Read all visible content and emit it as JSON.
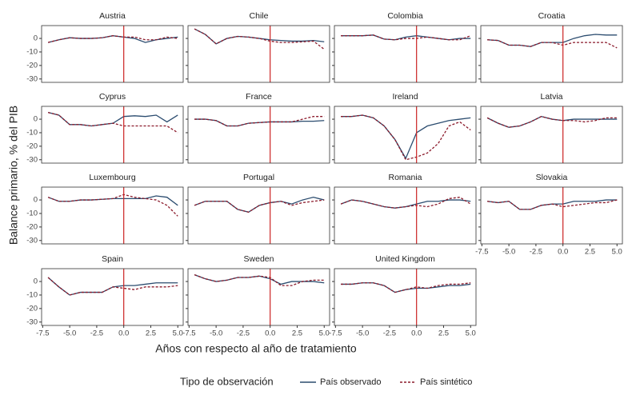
{
  "ylabel": "Balance primario, % del PIB",
  "xlabel": "Años con respecto al año de tratamiento",
  "xlim": [
    -7.6,
    5.5
  ],
  "xticks": [
    -7.5,
    {
      "value": -5,
      "label": "-5.0"
    },
    -2.5,
    {
      "value": 0,
      "label": "0.0"
    },
    2.5,
    {
      "value": 5,
      "label": "5.0"
    }
  ],
  "ylim": [
    -32.5,
    9.5
  ],
  "yticks": [
    0,
    -10,
    -20,
    -30
  ],
  "treatment_x": 0,
  "treatment_color": "#cc2222",
  "x": [
    -7,
    -6,
    -5,
    -4,
    -3,
    -2,
    -1,
    0,
    1,
    2,
    3,
    4,
    5
  ],
  "legend": {
    "title": "Tipo de observación",
    "entries": [
      {
        "name": "País observado",
        "color": "#2b4c6f",
        "dash": false
      },
      {
        "name": "País sintético",
        "color": "#8b1a2b",
        "dash": true
      }
    ]
  },
  "chart_data": [
    {
      "type": "line",
      "title": "Austria",
      "series": [
        {
          "values": [
            -3,
            -1,
            0.5,
            0,
            0,
            0.5,
            2,
            1,
            0,
            -3,
            -1,
            0,
            1
          ]
        },
        {
          "values": [
            -3,
            -1,
            0.5,
            0,
            0,
            0.5,
            2,
            1,
            1,
            -1,
            -1,
            1,
            0
          ]
        }
      ]
    },
    {
      "type": "line",
      "title": "Chile",
      "series": [
        {
          "values": [
            7,
            3,
            -4,
            0,
            1.5,
            1,
            0,
            -1,
            -1.5,
            -2,
            -2,
            -1.5,
            -2.5
          ]
        },
        {
          "values": [
            7,
            3,
            -4,
            0,
            1.5,
            1,
            0,
            -2,
            -3,
            -3,
            -2.5,
            -2,
            -8
          ]
        }
      ]
    },
    {
      "type": "line",
      "title": "Colombia",
      "series": [
        {
          "values": [
            2,
            2,
            2,
            2.5,
            -0.5,
            -1,
            1,
            2,
            1,
            0,
            -1,
            0,
            0
          ]
        },
        {
          "values": [
            2,
            2,
            2,
            2.5,
            -0.5,
            -1,
            0,
            0,
            1,
            0,
            -1,
            -1,
            2
          ]
        }
      ]
    },
    {
      "type": "line",
      "title": "Croatia",
      "series": [
        {
          "values": [
            -1,
            -1.5,
            -5,
            -5,
            -6,
            -3,
            -3,
            -3,
            0,
            2,
            3,
            2.5,
            2.5
          ]
        },
        {
          "values": [
            -1,
            -1.5,
            -5,
            -5,
            -6,
            -3,
            -3,
            -5,
            -3,
            -3,
            -3,
            -3,
            -7
          ]
        }
      ]
    },
    {
      "type": "line",
      "title": "Cyprus",
      "series": [
        {
          "values": [
            5,
            3,
            -4,
            -4,
            -5,
            -4,
            -3,
            2,
            2.5,
            2,
            3,
            -2,
            3
          ]
        },
        {
          "values": [
            5,
            3,
            -4,
            -4,
            -5,
            -4,
            -3,
            -5,
            -5,
            -5,
            -5,
            -5,
            -10
          ]
        }
      ]
    },
    {
      "type": "line",
      "title": "France",
      "series": [
        {
          "values": [
            0,
            0,
            -1,
            -5,
            -5,
            -3,
            -2.5,
            -2,
            -2,
            -2,
            -1.5,
            -1.5,
            -1
          ]
        },
        {
          "values": [
            0,
            0,
            -1,
            -5,
            -5,
            -3,
            -2.5,
            -2,
            -2,
            -2,
            0,
            2,
            2
          ]
        }
      ]
    },
    {
      "type": "line",
      "title": "Ireland",
      "series": [
        {
          "values": [
            2,
            2,
            3,
            1,
            -5,
            -15,
            -29,
            -10,
            -5,
            -3,
            -1,
            0,
            1
          ]
        },
        {
          "values": [
            2,
            2,
            3,
            1,
            -5,
            -15,
            -30,
            -28,
            -25,
            -18,
            -5,
            -2,
            -8
          ]
        }
      ]
    },
    {
      "type": "line",
      "title": "Latvia",
      "series": [
        {
          "values": [
            1,
            -3,
            -6,
            -5,
            -2,
            2,
            0,
            -1,
            0,
            0,
            0,
            0,
            0
          ]
        },
        {
          "values": [
            1,
            -3,
            -6,
            -5,
            -2,
            2,
            0,
            -1,
            -1,
            -2,
            -1,
            1,
            1
          ]
        }
      ]
    },
    {
      "type": "line",
      "title": "Luxembourg",
      "series": [
        {
          "values": [
            2,
            -1,
            -1,
            0,
            0,
            0.5,
            1,
            1,
            1,
            1,
            3,
            2,
            -4
          ]
        },
        {
          "values": [
            2,
            -1,
            -1,
            0,
            0,
            0.5,
            1,
            4,
            2,
            1,
            0,
            -4,
            -12
          ]
        }
      ]
    },
    {
      "type": "line",
      "title": "Portugal",
      "series": [
        {
          "values": [
            -4,
            -1,
            -1,
            -1,
            -7,
            -9,
            -4,
            -2,
            -1,
            -3,
            0,
            2,
            0
          ]
        },
        {
          "values": [
            -4,
            -1,
            -1,
            -1,
            -7,
            -9,
            -4,
            -2,
            -1,
            -4,
            -2,
            -1,
            0
          ]
        }
      ]
    },
    {
      "type": "line",
      "title": "Romania",
      "series": [
        {
          "values": [
            -3,
            0,
            -1,
            -3,
            -5,
            -6,
            -5,
            -3,
            -1,
            -1,
            0,
            0,
            -1
          ]
        },
        {
          "values": [
            -3,
            0,
            -1,
            -3,
            -5,
            -6,
            -5,
            -4,
            -5,
            -3,
            1,
            2,
            -3
          ]
        }
      ]
    },
    {
      "type": "line",
      "title": "Slovakia",
      "series": [
        {
          "values": [
            -1,
            -2,
            -1,
            -7,
            -7,
            -4,
            -3,
            -3,
            -1,
            -1,
            -1,
            0,
            0
          ]
        },
        {
          "values": [
            -1,
            -2,
            -1,
            -7,
            -7,
            -4,
            -3,
            -5,
            -4,
            -3,
            -2,
            -2,
            0
          ]
        }
      ]
    },
    {
      "type": "line",
      "title": "Spain",
      "series": [
        {
          "values": [
            3,
            -4,
            -10,
            -8,
            -8,
            -8,
            -4,
            -3,
            -3,
            -2,
            -1,
            -1,
            -1
          ]
        },
        {
          "values": [
            3,
            -4,
            -10,
            -8,
            -8,
            -8,
            -4,
            -5,
            -6,
            -4,
            -4,
            -4,
            -3
          ]
        }
      ]
    },
    {
      "type": "line",
      "title": "Sweden",
      "series": [
        {
          "values": [
            5,
            2,
            0,
            1,
            3,
            3,
            4,
            2,
            -2,
            0,
            0,
            0,
            -1
          ]
        },
        {
          "values": [
            5,
            2,
            0,
            1,
            3,
            3,
            4,
            3,
            -3,
            -3,
            0,
            1,
            1
          ]
        }
      ]
    },
    {
      "type": "line",
      "title": "United Kingdom",
      "series": [
        {
          "values": [
            -2,
            -2,
            -1,
            -1,
            -3,
            -8,
            -6,
            -5,
            -5,
            -4,
            -3,
            -3,
            -2
          ]
        },
        {
          "values": [
            -2,
            -2,
            -1,
            -1,
            -3,
            -8,
            -6,
            -4,
            -5,
            -3,
            -2,
            -2,
            -1
          ]
        }
      ]
    }
  ]
}
